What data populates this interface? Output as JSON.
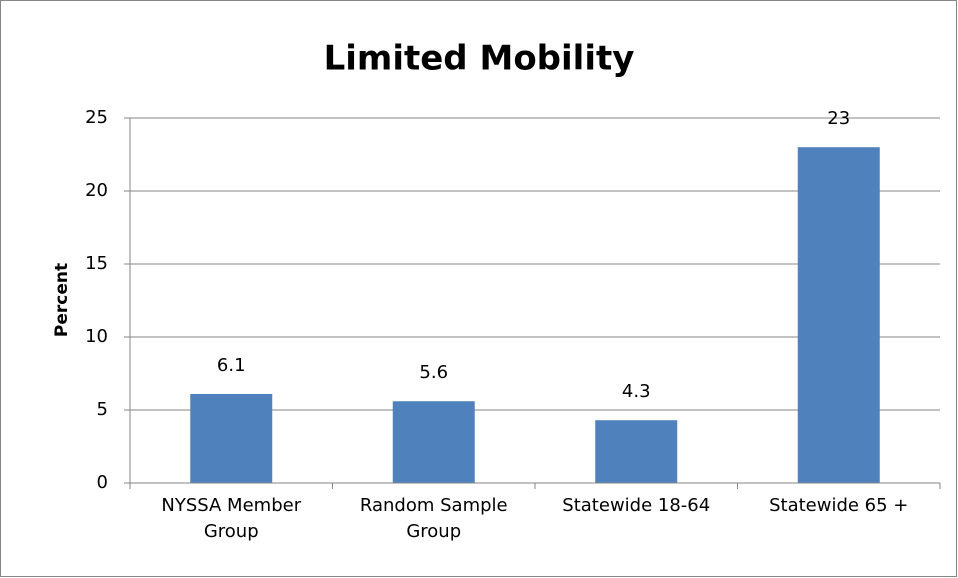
{
  "chart_data": {
    "type": "bar",
    "title": "Limited Mobility",
    "y_label": "Percent",
    "categories": [
      "NYSSA Member Group",
      "Random Sample Group",
      "Statewide 18-64",
      "Statewide 65 +"
    ],
    "values": [
      6.1,
      5.6,
      4.3,
      23
    ],
    "color": "#4f81bd",
    "ylim": [
      0,
      25
    ],
    "yticks": [
      0,
      5,
      10,
      15,
      20,
      25
    ],
    "grid": true
  }
}
